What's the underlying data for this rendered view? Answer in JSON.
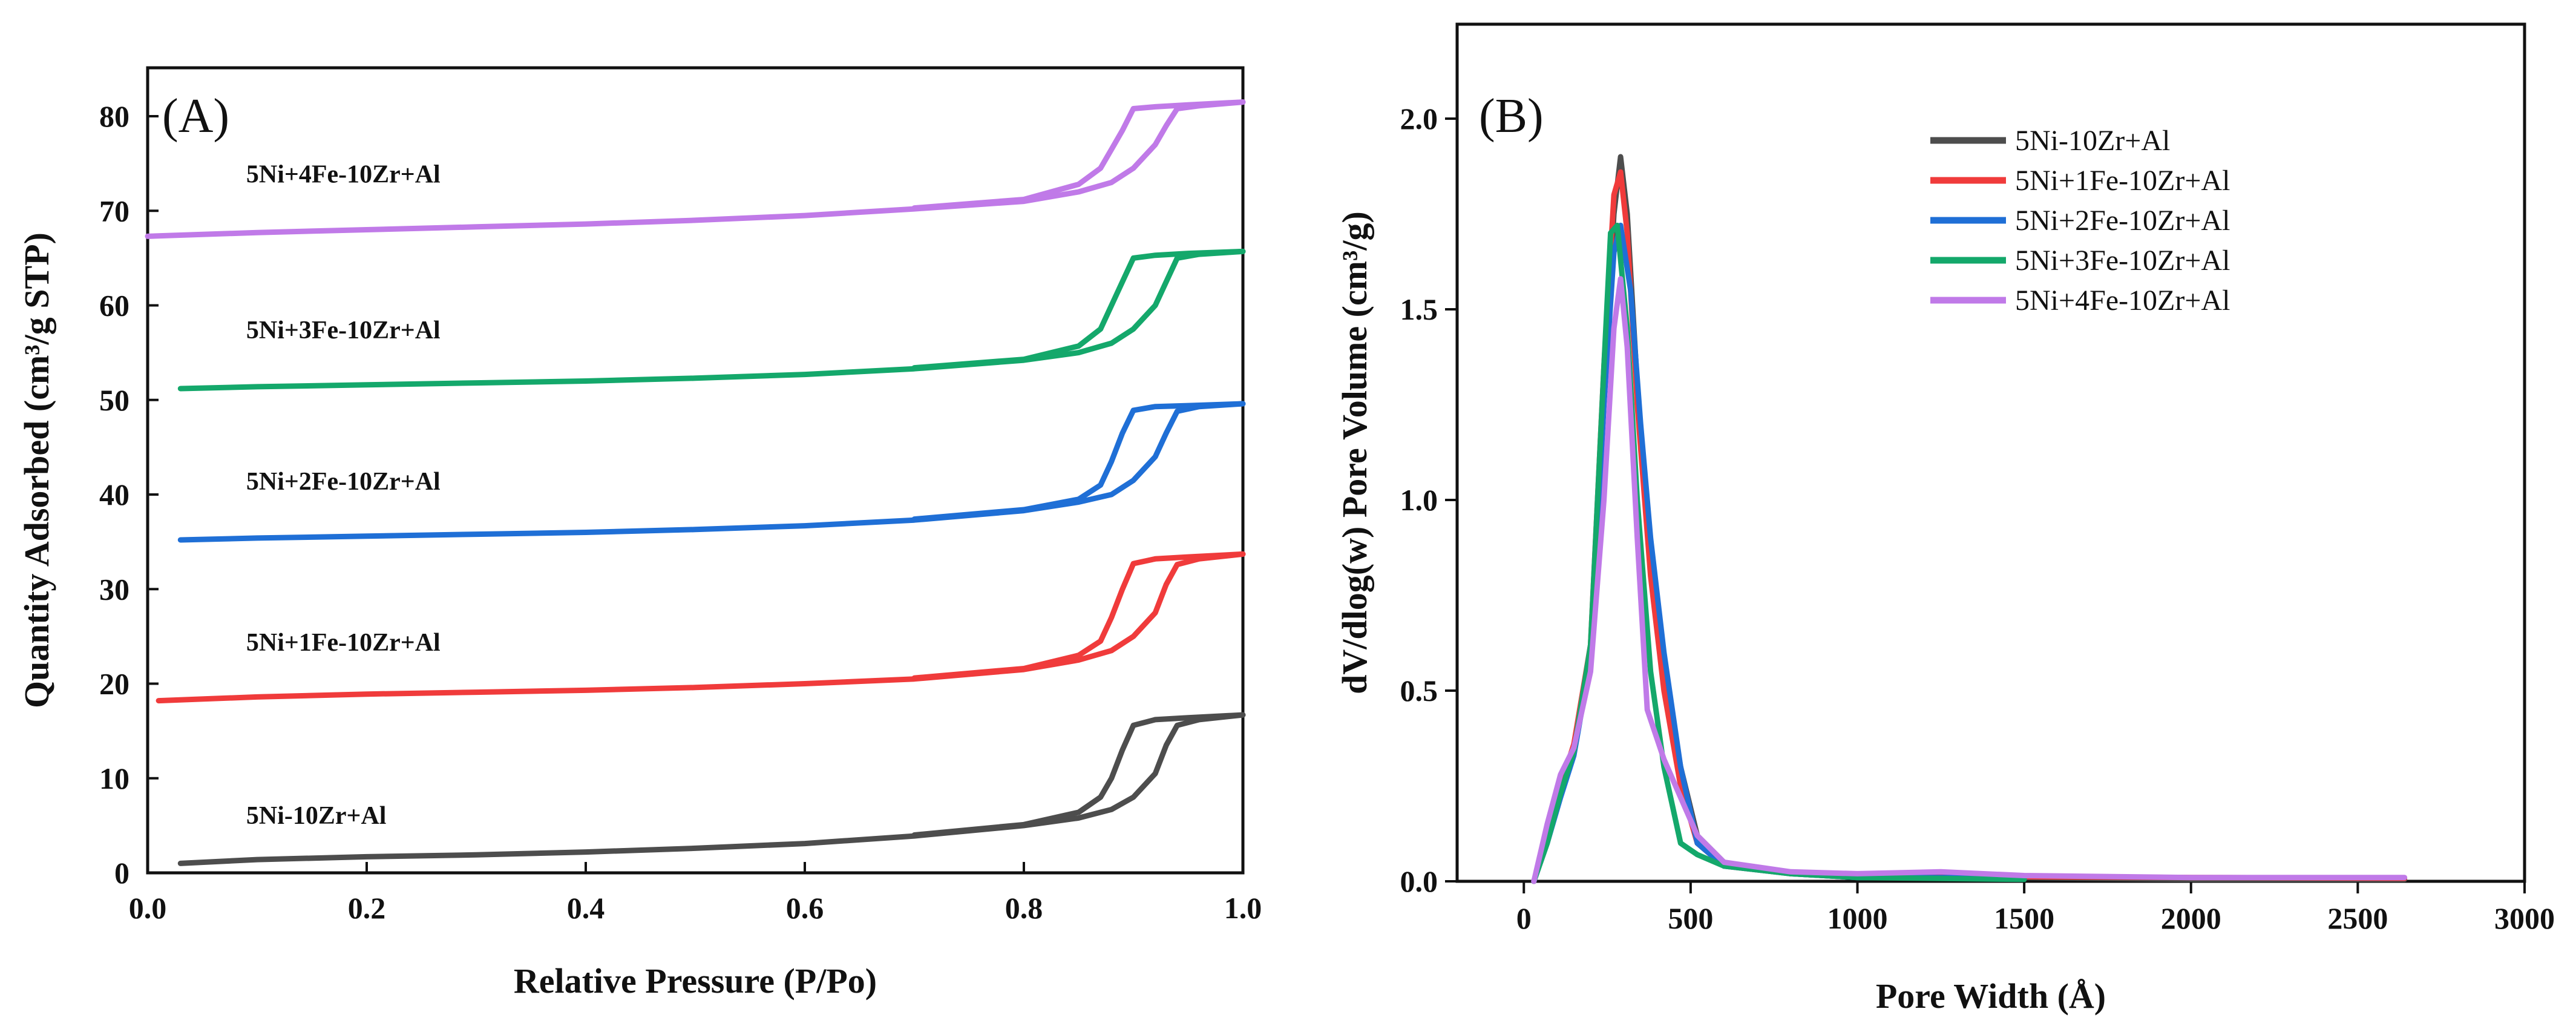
{
  "chart_data": [
    {
      "type": "line",
      "panel_label": "(A)",
      "xlabel": "Relative Pressure (P/Po)",
      "ylabel": "Quantity Adsorbed (cm³/g STP)",
      "xlim": [
        0.0,
        1.0
      ],
      "ylim": [
        0,
        85
      ],
      "xticks": [
        "0.0",
        "0.2",
        "0.4",
        "0.6",
        "0.8",
        "1.0"
      ],
      "yticks": [
        "0",
        "10",
        "20",
        "30",
        "40",
        "50",
        "60",
        "70",
        "80"
      ],
      "series": [
        {
          "name": "5Ni-10Zr+Al",
          "color": "#4d4d4d",
          "adsorption": [
            [
              0.03,
              1.0
            ],
            [
              0.1,
              1.4
            ],
            [
              0.2,
              1.7
            ],
            [
              0.3,
              1.9
            ],
            [
              0.4,
              2.2
            ],
            [
              0.5,
              2.6
            ],
            [
              0.6,
              3.1
            ],
            [
              0.7,
              3.9
            ],
            [
              0.8,
              5.0
            ],
            [
              0.85,
              5.8
            ],
            [
              0.88,
              6.7
            ],
            [
              0.9,
              8.0
            ],
            [
              0.92,
              10.5
            ],
            [
              0.93,
              13.5
            ],
            [
              0.94,
              15.6
            ],
            [
              0.96,
              16.2
            ],
            [
              1.0,
              16.7
            ]
          ],
          "desorption": [
            [
              1.0,
              16.7
            ],
            [
              0.95,
              16.4
            ],
            [
              0.92,
              16.2
            ],
            [
              0.9,
              15.6
            ],
            [
              0.89,
              13.0
            ],
            [
              0.88,
              10.0
            ],
            [
              0.87,
              8.0
            ],
            [
              0.85,
              6.4
            ],
            [
              0.8,
              5.1
            ],
            [
              0.7,
              4.0
            ]
          ]
        },
        {
          "name": "5Ni+1Fe-10Zr+Al",
          "color": "#f03b3b",
          "adsorption": [
            [
              0.01,
              18.2
            ],
            [
              0.1,
              18.6
            ],
            [
              0.2,
              18.9
            ],
            [
              0.3,
              19.1
            ],
            [
              0.4,
              19.3
            ],
            [
              0.5,
              19.6
            ],
            [
              0.6,
              20.0
            ],
            [
              0.7,
              20.5
            ],
            [
              0.8,
              21.5
            ],
            [
              0.85,
              22.5
            ],
            [
              0.88,
              23.5
            ],
            [
              0.9,
              25.0
            ],
            [
              0.92,
              27.5
            ],
            [
              0.93,
              30.5
            ],
            [
              0.94,
              32.6
            ],
            [
              0.96,
              33.2
            ],
            [
              1.0,
              33.7
            ]
          ],
          "desorption": [
            [
              1.0,
              33.7
            ],
            [
              0.95,
              33.4
            ],
            [
              0.92,
              33.2
            ],
            [
              0.9,
              32.7
            ],
            [
              0.89,
              30.0
            ],
            [
              0.88,
              27.0
            ],
            [
              0.87,
              24.5
            ],
            [
              0.85,
              23.0
            ],
            [
              0.8,
              21.6
            ],
            [
              0.7,
              20.6
            ]
          ]
        },
        {
          "name": "5Ni+2Fe-10Zr+Al",
          "color": "#1f6fd6",
          "adsorption": [
            [
              0.03,
              35.2
            ],
            [
              0.1,
              35.4
            ],
            [
              0.2,
              35.6
            ],
            [
              0.3,
              35.8
            ],
            [
              0.4,
              36.0
            ],
            [
              0.5,
              36.3
            ],
            [
              0.6,
              36.7
            ],
            [
              0.7,
              37.3
            ],
            [
              0.8,
              38.3
            ],
            [
              0.85,
              39.2
            ],
            [
              0.88,
              40.0
            ],
            [
              0.9,
              41.5
            ],
            [
              0.92,
              44.0
            ],
            [
              0.93,
              46.5
            ],
            [
              0.94,
              48.8
            ],
            [
              0.96,
              49.3
            ],
            [
              1.0,
              49.6
            ]
          ],
          "desorption": [
            [
              1.0,
              49.6
            ],
            [
              0.95,
              49.4
            ],
            [
              0.92,
              49.3
            ],
            [
              0.9,
              48.9
            ],
            [
              0.89,
              46.5
            ],
            [
              0.88,
              43.5
            ],
            [
              0.87,
              41.0
            ],
            [
              0.85,
              39.5
            ],
            [
              0.8,
              38.4
            ],
            [
              0.7,
              37.4
            ]
          ]
        },
        {
          "name": "5Ni+3Fe-10Zr+Al",
          "color": "#14a86b",
          "adsorption": [
            [
              0.03,
              51.2
            ],
            [
              0.1,
              51.4
            ],
            [
              0.2,
              51.6
            ],
            [
              0.3,
              51.8
            ],
            [
              0.4,
              52.0
            ],
            [
              0.5,
              52.3
            ],
            [
              0.6,
              52.7
            ],
            [
              0.7,
              53.3
            ],
            [
              0.8,
              54.2
            ],
            [
              0.85,
              55.0
            ],
            [
              0.88,
              56.0
            ],
            [
              0.9,
              57.5
            ],
            [
              0.92,
              60.0
            ],
            [
              0.93,
              62.5
            ],
            [
              0.94,
              65.0
            ],
            [
              0.96,
              65.4
            ],
            [
              1.0,
              65.7
            ]
          ],
          "desorption": [
            [
              1.0,
              65.7
            ],
            [
              0.95,
              65.5
            ],
            [
              0.92,
              65.3
            ],
            [
              0.9,
              65.0
            ],
            [
              0.89,
              62.5
            ],
            [
              0.88,
              60.0
            ],
            [
              0.87,
              57.5
            ],
            [
              0.85,
              55.7
            ],
            [
              0.8,
              54.3
            ],
            [
              0.7,
              53.4
            ]
          ]
        },
        {
          "name": "5Ni+4Fe-10Zr+Al",
          "color": "#c07ae8",
          "adsorption": [
            [
              0.0,
              67.3
            ],
            [
              0.1,
              67.7
            ],
            [
              0.2,
              68.0
            ],
            [
              0.3,
              68.3
            ],
            [
              0.4,
              68.6
            ],
            [
              0.5,
              69.0
            ],
            [
              0.6,
              69.5
            ],
            [
              0.7,
              70.2
            ],
            [
              0.8,
              71.0
            ],
            [
              0.85,
              72.0
            ],
            [
              0.88,
              73.0
            ],
            [
              0.9,
              74.5
            ],
            [
              0.92,
              77.0
            ],
            [
              0.93,
              79.0
            ],
            [
              0.94,
              80.8
            ],
            [
              0.96,
              81.1
            ],
            [
              1.0,
              81.5
            ]
          ],
          "desorption": [
            [
              1.0,
              81.5
            ],
            [
              0.95,
              81.2
            ],
            [
              0.92,
              81.0
            ],
            [
              0.9,
              80.8
            ],
            [
              0.89,
              78.5
            ],
            [
              0.88,
              76.5
            ],
            [
              0.87,
              74.5
            ],
            [
              0.85,
              72.8
            ],
            [
              0.8,
              71.2
            ],
            [
              0.7,
              70.3
            ]
          ]
        }
      ],
      "annotations": [
        {
          "text": "5Ni+4Fe-10Zr+Al",
          "x": 0.09,
          "y": 73
        },
        {
          "text": "5Ni+3Fe-10Zr+Al",
          "x": 0.09,
          "y": 56.5
        },
        {
          "text": "5Ni+2Fe-10Zr+Al",
          "x": 0.09,
          "y": 40.5
        },
        {
          "text": "5Ni+1Fe-10Zr+Al",
          "x": 0.09,
          "y": 23.5
        },
        {
          "text": "5Ni-10Zr+Al",
          "x": 0.09,
          "y": 5.2
        }
      ]
    },
    {
      "type": "line",
      "panel_label": "(B)",
      "xlabel": "Pore Width (Å)",
      "ylabel": "dV/dlog(w) Pore Volume (cm³/g)",
      "xlim": [
        -200,
        3000
      ],
      "ylim": [
        0,
        2.3
      ],
      "xticks": [
        "0",
        "500",
        "1000",
        "1500",
        "2000",
        "2500",
        "3000"
      ],
      "yticks": [
        "0.0",
        "0.5",
        "1.0",
        "1.5",
        "2.0"
      ],
      "legend_position": "top-right",
      "series": [
        {
          "name": "5Ni-10Zr+Al",
          "color": "#4d4d4d",
          "points": [
            [
              30,
              0
            ],
            [
              70,
              0.12
            ],
            [
              110,
              0.25
            ],
            [
              150,
              0.35
            ],
            [
              200,
              0.6
            ],
            [
              240,
              1.3
            ],
            [
              270,
              1.75
            ],
            [
              290,
              1.9
            ],
            [
              310,
              1.75
            ],
            [
              340,
              1.3
            ],
            [
              380,
              0.85
            ],
            [
              420,
              0.55
            ],
            [
              470,
              0.3
            ],
            [
              520,
              0.12
            ],
            [
              600,
              0.05
            ],
            [
              800,
              0.02
            ],
            [
              1000,
              0.01
            ],
            [
              1500,
              0.01
            ],
            [
              2000,
              0.005
            ],
            [
              2640,
              0.005
            ]
          ]
        },
        {
          "name": "5Ni+1Fe-10Zr+Al",
          "color": "#f03b3b",
          "points": [
            [
              30,
              0
            ],
            [
              70,
              0.12
            ],
            [
              110,
              0.25
            ],
            [
              150,
              0.36
            ],
            [
              200,
              0.62
            ],
            [
              240,
              1.35
            ],
            [
              270,
              1.8
            ],
            [
              290,
              1.86
            ],
            [
              310,
              1.7
            ],
            [
              340,
              1.25
            ],
            [
              380,
              0.8
            ],
            [
              420,
              0.5
            ],
            [
              470,
              0.25
            ],
            [
              520,
              0.1
            ],
            [
              600,
              0.04
            ],
            [
              800,
              0.02
            ],
            [
              1000,
              0.015
            ],
            [
              1500,
              0.012
            ],
            [
              2000,
              0.01
            ],
            [
              2640,
              0.008
            ]
          ]
        },
        {
          "name": "5Ni+2Fe-10Zr+Al",
          "color": "#1f6fd6",
          "points": [
            [
              30,
              0
            ],
            [
              70,
              0.1
            ],
            [
              110,
              0.22
            ],
            [
              150,
              0.33
            ],
            [
              200,
              0.58
            ],
            [
              240,
              1.25
            ],
            [
              270,
              1.65
            ],
            [
              290,
              1.72
            ],
            [
              320,
              1.55
            ],
            [
              350,
              1.2
            ],
            [
              380,
              0.9
            ],
            [
              420,
              0.6
            ],
            [
              470,
              0.3
            ],
            [
              520,
              0.1
            ],
            [
              600,
              0.04
            ],
            [
              800,
              0.02
            ],
            [
              1000,
              0.01
            ],
            [
              1500,
              0.01
            ]
          ]
        },
        {
          "name": "5Ni+3Fe-10Zr+Al",
          "color": "#14a86b",
          "points": [
            [
              30,
              0
            ],
            [
              70,
              0.1
            ],
            [
              110,
              0.23
            ],
            [
              150,
              0.34
            ],
            [
              200,
              0.62
            ],
            [
              240,
              1.35
            ],
            [
              260,
              1.7
            ],
            [
              280,
              1.72
            ],
            [
              310,
              1.45
            ],
            [
              340,
              1.0
            ],
            [
              380,
              0.55
            ],
            [
              420,
              0.3
            ],
            [
              470,
              0.1
            ],
            [
              520,
              0.07
            ],
            [
              600,
              0.04
            ],
            [
              800,
              0.02
            ],
            [
              1000,
              0.01
            ],
            [
              1500,
              0.005
            ]
          ]
        },
        {
          "name": "5Ni+4Fe-10Zr+Al",
          "color": "#c07ae8",
          "points": [
            [
              30,
              0
            ],
            [
              70,
              0.15
            ],
            [
              110,
              0.28
            ],
            [
              150,
              0.35
            ],
            [
              200,
              0.55
            ],
            [
              240,
              1.0
            ],
            [
              270,
              1.45
            ],
            [
              290,
              1.58
            ],
            [
              310,
              1.4
            ],
            [
              340,
              0.9
            ],
            [
              370,
              0.45
            ],
            [
              420,
              0.32
            ],
            [
              470,
              0.22
            ],
            [
              520,
              0.12
            ],
            [
              600,
              0.05
            ],
            [
              800,
              0.025
            ],
            [
              1000,
              0.02
            ],
            [
              1250,
              0.025
            ],
            [
              1500,
              0.015
            ],
            [
              2000,
              0.01
            ],
            [
              2640,
              0.01
            ]
          ]
        }
      ]
    }
  ]
}
